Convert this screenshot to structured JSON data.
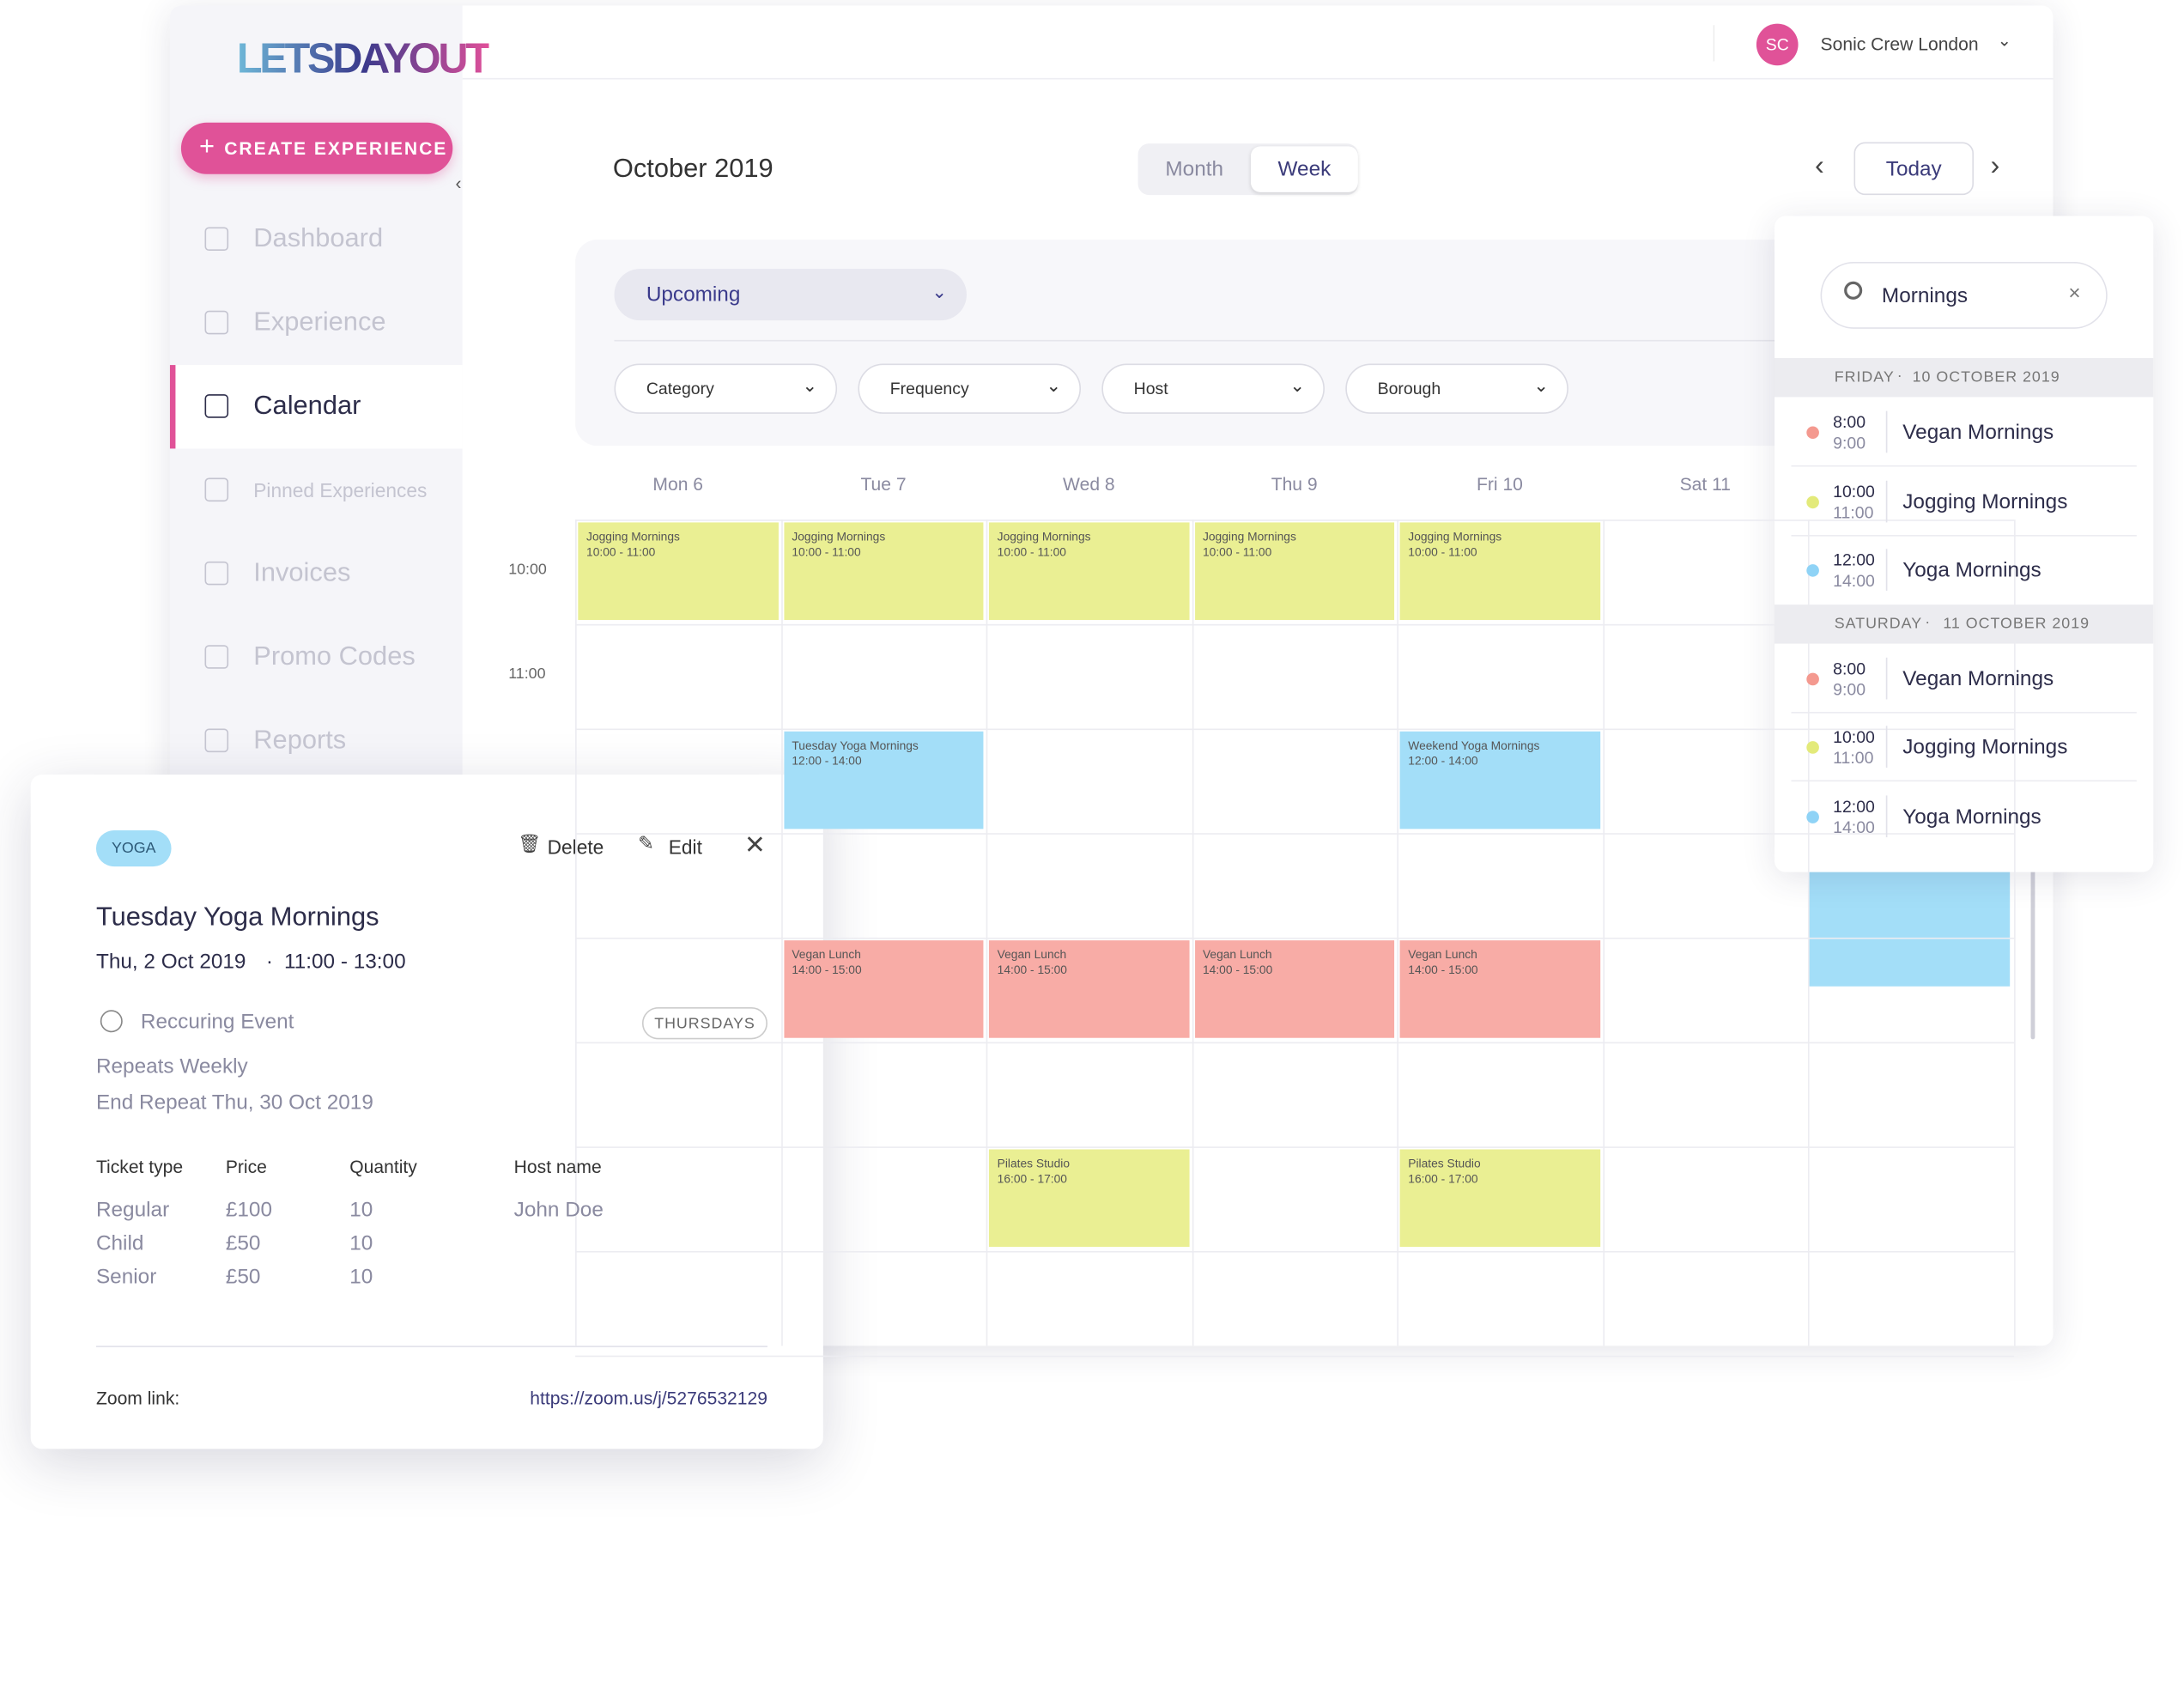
{
  "brand": "LETSDAYOUT",
  "create_button": "CREATE EXPERIENCE",
  "nav": {
    "items": [
      "Dashboard",
      "Experience",
      "Calendar",
      "Pinned Experiences",
      "Invoices",
      "Promo Codes",
      "Reports"
    ],
    "active": "Calendar"
  },
  "user": {
    "initials": "SC",
    "name": "Sonic Crew London"
  },
  "calendar": {
    "month": "October 2019",
    "views": [
      "Month",
      "Week"
    ],
    "selected_view": "Week",
    "today": "Today",
    "status": "Upcoming",
    "filters": [
      "Category",
      "Frequency",
      "Host",
      "Borough"
    ],
    "times": [
      "10:00",
      "11:00"
    ],
    "days": [
      {
        "label": "Mon 6",
        "events": [
          {
            "title": "Jogging Mornings",
            "time": "10:00 - 11:00",
            "color": "#eaef93"
          }
        ]
      },
      {
        "label": "Tue 7",
        "events": [
          {
            "title": "Jogging Mornings",
            "time": "10:00 - 11:00",
            "color": "#eaef93"
          },
          {
            "title": "Tuesday Yoga Mornings",
            "time": "12:00 - 14:00",
            "color": "#a3def8"
          },
          {
            "title": "Vegan Lunch",
            "time": "14:00 - 15:00",
            "color": "#f8aca6"
          }
        ]
      },
      {
        "label": "Wed 8",
        "events": [
          {
            "title": "Jogging Mornings",
            "time": "10:00 - 11:00",
            "color": "#eaef93"
          },
          {
            "title": "Vegan Lunch",
            "time": "14:00 - 15:00",
            "color": "#f8aca6"
          },
          {
            "title": "Pilates Studio",
            "time": "16:00 - 17:00",
            "color": "#eaef93"
          }
        ]
      },
      {
        "label": "Thu 9",
        "events": [
          {
            "title": "Jogging Mornings",
            "time": "10:00 - 11:00",
            "color": "#eaef93"
          },
          {
            "title": "Vegan Lunch",
            "time": "14:00 - 15:00",
            "color": "#f8aca6"
          }
        ]
      },
      {
        "label": "Fri 10",
        "events": [
          {
            "title": "Jogging Mornings",
            "time": "10:00 - 11:00",
            "color": "#eaef93"
          },
          {
            "title": "Weekend Yoga Mornings",
            "time": "12:00 - 14:00",
            "color": "#a3def8"
          },
          {
            "title": "Vegan Lunch",
            "time": "14:00 - 15:00",
            "color": "#f8aca6"
          },
          {
            "title": "Pilates Studio",
            "time": "16:00 - 17:00",
            "color": "#eaef93"
          }
        ]
      },
      {
        "label": "Sat 11",
        "events": []
      }
    ]
  },
  "search": {
    "query": "Mornings",
    "groups": [
      {
        "day": "FRIDAY",
        "date": "10 OCTOBER 2019",
        "items": [
          {
            "start": "8:00",
            "end": "9:00",
            "title": "Vegan Mornings",
            "color": "#f4998f"
          },
          {
            "start": "10:00",
            "end": "11:00",
            "title": "Jogging Mornings",
            "color": "#e3ea7a"
          },
          {
            "start": "12:00",
            "end": "14:00",
            "title": "Yoga Mornings",
            "color": "#8fd3f6"
          }
        ]
      },
      {
        "day": "SATURDAY",
        "date": "11 OCTOBER 2019",
        "items": [
          {
            "start": "8:00",
            "end": "9:00",
            "title": "Vegan Mornings",
            "color": "#f4998f"
          },
          {
            "start": "10:00",
            "end": "11:00",
            "title": "Jogging Mornings",
            "color": "#e3ea7a"
          },
          {
            "start": "12:00",
            "end": "14:00",
            "title": "Yoga Mornings",
            "color": "#8fd3f6"
          }
        ]
      }
    ]
  },
  "popup": {
    "tag": "YOGA",
    "delete": "Delete",
    "edit": "Edit",
    "title": "Tuesday Yoga Mornings",
    "date": "Thu, 2 Oct 2019",
    "time": "11:00 - 13:00",
    "recurring": "Reccuring Event",
    "badge": "THURSDAYS",
    "repeats": "Repeats Weekly",
    "end_repeat": "End Repeat Thu, 30 Oct 2019",
    "table": {
      "headers": [
        "Ticket type",
        "Price",
        "Quantity",
        "Host name"
      ],
      "rows": [
        [
          "Regular",
          "£100",
          "10"
        ],
        [
          "Child",
          "£50",
          "10"
        ],
        [
          "Senior",
          "£50",
          "10"
        ]
      ],
      "host": "John Doe"
    },
    "zoom_label": "Zoom link:",
    "zoom_url": "https://zoom.us/j/5276532129"
  }
}
